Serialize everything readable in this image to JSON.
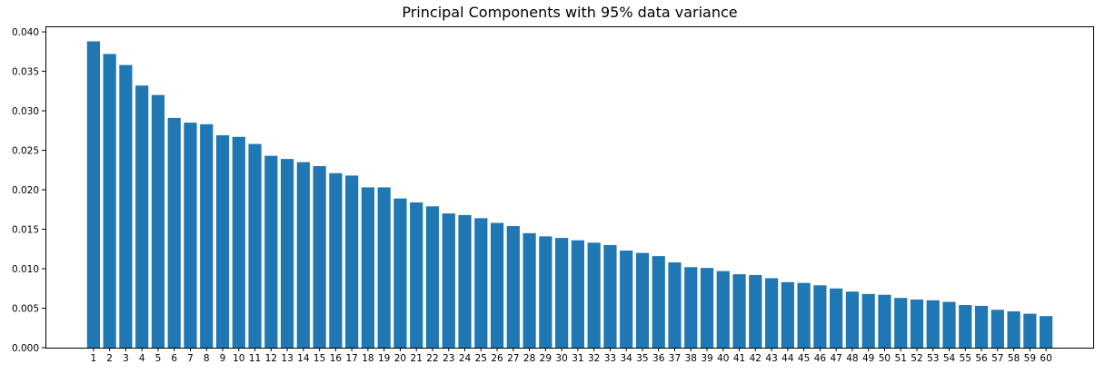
{
  "chart_data": {
    "type": "bar",
    "title": "Principal Components with 95% data variance",
    "xlabel": "",
    "ylabel": "",
    "categories": [
      "1",
      "2",
      "3",
      "4",
      "5",
      "6",
      "7",
      "8",
      "9",
      "10",
      "11",
      "12",
      "13",
      "14",
      "15",
      "16",
      "17",
      "18",
      "19",
      "20",
      "21",
      "22",
      "23",
      "24",
      "25",
      "26",
      "27",
      "28",
      "29",
      "30",
      "31",
      "32",
      "33",
      "34",
      "35",
      "36",
      "37",
      "38",
      "39",
      "40",
      "41",
      "42",
      "43",
      "44",
      "45",
      "46",
      "47",
      "48",
      "49",
      "50",
      "51",
      "52",
      "53",
      "54",
      "55",
      "56",
      "57",
      "58",
      "59",
      "60"
    ],
    "values": [
      0.0388,
      0.0372,
      0.0358,
      0.0332,
      0.032,
      0.0291,
      0.0285,
      0.0283,
      0.0269,
      0.0267,
      0.0258,
      0.0243,
      0.0239,
      0.0235,
      0.023,
      0.0221,
      0.0218,
      0.0203,
      0.0203,
      0.0189,
      0.0184,
      0.0179,
      0.017,
      0.0168,
      0.0164,
      0.0158,
      0.0154,
      0.0145,
      0.0141,
      0.0139,
      0.0136,
      0.0133,
      0.013,
      0.0123,
      0.012,
      0.0116,
      0.0108,
      0.0102,
      0.0101,
      0.0097,
      0.0093,
      0.0092,
      0.0088,
      0.0083,
      0.0082,
      0.0079,
      0.0075,
      0.0071,
      0.0068,
      0.0067,
      0.0063,
      0.0061,
      0.006,
      0.0058,
      0.0054,
      0.0053,
      0.0048,
      0.0046,
      0.0043,
      0.004
    ],
    "yticks": [
      "0.000",
      "0.005",
      "0.010",
      "0.015",
      "0.020",
      "0.025",
      "0.030",
      "0.035",
      "0.040"
    ],
    "ylim": [
      0,
      0.0407
    ],
    "grid": false,
    "colors": {
      "bar": "#1f77b4",
      "axes": "#000000"
    }
  }
}
